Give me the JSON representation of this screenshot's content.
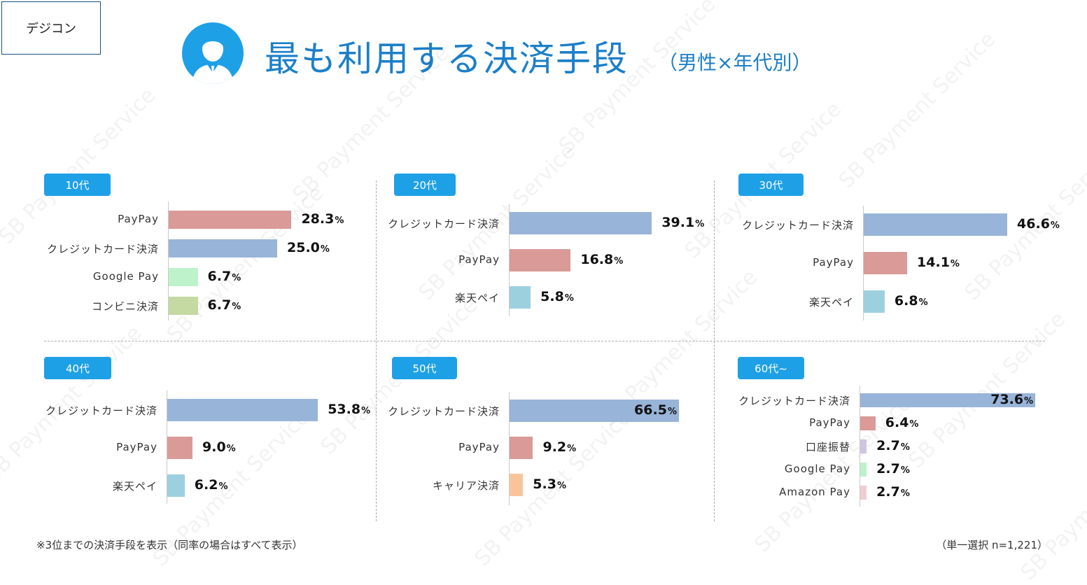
{
  "header": {
    "logo_text": "デジコン",
    "title": "最も利用する決済手段",
    "subtitle": "（男性×年代別）",
    "avatar_icon": "person-avatar-icon"
  },
  "colors": {
    "accent": "#1ea0e6",
    "クレジットカード決済": "#98b4d8",
    "PayPay": "#d99a98",
    "Google Pay": "#bdf2cb",
    "コンビニ決済": "#c5d9a2",
    "楽天ペイ": "#9dd0df",
    "キャリア決済": "#f8c59b",
    "口座振替": "#d0c4e2",
    "Amazon Pay": "#f0cdd0"
  },
  "watermark": "SB Payment Service",
  "chart_data": [
    {
      "type": "bar",
      "orientation": "horizontal",
      "title": "10代",
      "categories": [
        "PayPay",
        "クレジットカード決済",
        "Google Pay",
        "コンビニ決済"
      ],
      "values": [
        28.3,
        25.0,
        6.7,
        6.7
      ],
      "labels": [
        "28.3",
        "25.0",
        "6.7",
        "6.7"
      ],
      "unit": "%",
      "xlim": [
        0,
        80
      ]
    },
    {
      "type": "bar",
      "orientation": "horizontal",
      "title": "20代",
      "categories": [
        "クレジットカード決済",
        "PayPay",
        "楽天ペイ"
      ],
      "values": [
        39.1,
        16.8,
        5.8
      ],
      "labels": [
        "39.1",
        "16.8",
        "5.8"
      ],
      "unit": "%",
      "xlim": [
        0,
        80
      ]
    },
    {
      "type": "bar",
      "orientation": "horizontal",
      "title": "30代",
      "categories": [
        "クレジットカード決済",
        "PayPay",
        "楽天ペイ"
      ],
      "values": [
        46.6,
        14.1,
        6.8
      ],
      "labels": [
        "46.6",
        "14.1",
        "6.8"
      ],
      "unit": "%",
      "xlim": [
        0,
        80
      ]
    },
    {
      "type": "bar",
      "orientation": "horizontal",
      "title": "40代",
      "categories": [
        "クレジットカード決済",
        "PayPay",
        "楽天ペイ"
      ],
      "values": [
        53.8,
        9.0,
        6.2
      ],
      "labels": [
        "53.8",
        "9.0",
        "6.2"
      ],
      "unit": "%",
      "xlim": [
        0,
        80
      ]
    },
    {
      "type": "bar",
      "orientation": "horizontal",
      "title": "50代",
      "categories": [
        "クレジットカード決済",
        "PayPay",
        "キャリア決済"
      ],
      "values": [
        66.5,
        9.2,
        5.3
      ],
      "labels": [
        "66.5",
        "9.2",
        "5.3"
      ],
      "unit": "%",
      "xlim": [
        0,
        80
      ]
    },
    {
      "type": "bar",
      "orientation": "horizontal",
      "title": "60代~",
      "categories": [
        "クレジットカード決済",
        "PayPay",
        "口座振替",
        "Google Pay",
        "Amazon Pay"
      ],
      "values": [
        73.6,
        6.4,
        2.7,
        2.7,
        2.7
      ],
      "labels": [
        "73.6",
        "6.4",
        "2.7",
        "2.7",
        "2.7"
      ],
      "unit": "%",
      "xlim": [
        0,
        80
      ]
    }
  ],
  "footer": {
    "note": "※3位までの決済手段を表示（同率の場合はすべて表示）",
    "sample": "（単一選択 n=1,221）"
  }
}
